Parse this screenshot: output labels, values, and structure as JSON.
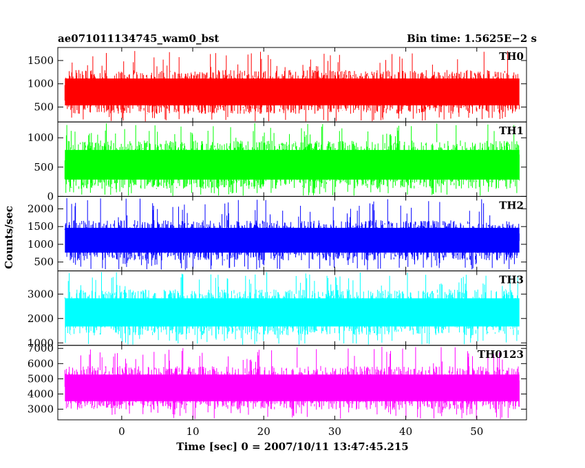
{
  "header": {
    "title": "ae071011134745_wam0_bst",
    "bin_time": "Bin time: 1.5625E−2 s"
  },
  "chart_data": {
    "type": "line",
    "xlabel": "Time [sec] 0 = 2007/10/11 13:47:45.215",
    "ylabel": "Counts/sec",
    "xlim": [
      -9,
      57
    ],
    "data_x_range": [
      -8,
      56
    ],
    "xticks": [
      0,
      10,
      20,
      30,
      40,
      50
    ],
    "grid": false,
    "panels": [
      {
        "name": "TH0",
        "color": "#ff0000",
        "ylim": [
          180,
          1780
        ],
        "yticks": [
          500,
          1000,
          1500
        ],
        "band": [
          300,
          1350
        ],
        "peak": 1720
      },
      {
        "name": "TH1",
        "color": "#00ff00",
        "ylim": [
          0,
          1270
        ],
        "yticks": [
          0,
          500,
          1000
        ],
        "band": [
          80,
          1000
        ],
        "peak": 1250
      },
      {
        "name": "TH2",
        "color": "#0000ff",
        "ylim": [
          250,
          2350
        ],
        "yticks": [
          500,
          1000,
          1500,
          2000
        ],
        "band": [
          480,
          1750
        ],
        "peak": 2300
      },
      {
        "name": "TH3",
        "color": "#00ffff",
        "ylim": [
          900,
          3950
        ],
        "yticks": [
          1000,
          2000,
          3000
        ],
        "band": [
          1200,
          3300
        ],
        "peak": 3900
      },
      {
        "name": "TH0123",
        "color": "#ff00ff",
        "ylim": [
          2300,
          7200
        ],
        "yticks": [
          3000,
          4000,
          5000,
          6000,
          7000
        ],
        "band": [
          2800,
          6000
        ],
        "peak": 7100
      }
    ]
  }
}
